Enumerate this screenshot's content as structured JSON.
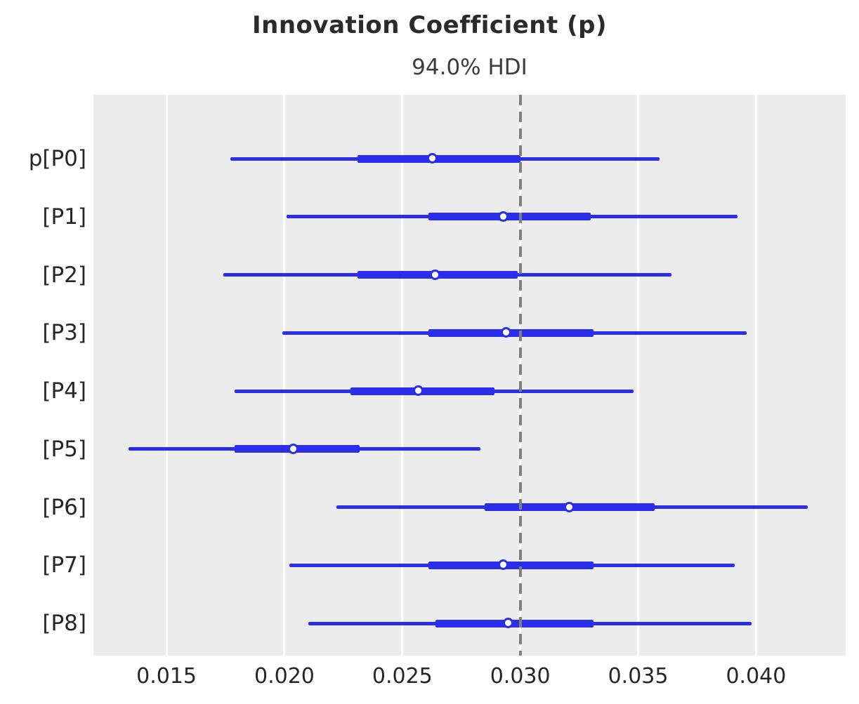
{
  "title": "Innovation Coefficient (p)",
  "subtitle": "94.0% HDI",
  "chart_data": {
    "type": "forest",
    "title": "Innovation Coefficient (p)",
    "subtitle": "94.0% HDI",
    "hdi_probability": "94.0%",
    "variable": "p",
    "xlim": [
      0.0119,
      0.0438
    ],
    "x_ticks": [
      0.015,
      0.02,
      0.025,
      0.03,
      0.035,
      0.04
    ],
    "x_tick_labels": [
      "0.015",
      "0.020",
      "0.025",
      "0.030",
      "0.035",
      "0.040"
    ],
    "ref_line_value": 0.03,
    "grid": "vertical-only",
    "legend": "none",
    "rows": [
      {
        "label": "p[P0]",
        "hdi_low": 0.0177,
        "quartile_low": 0.0231,
        "median": 0.0263,
        "quartile_high": 0.03,
        "hdi_high": 0.0359
      },
      {
        "label": "[P1]",
        "hdi_low": 0.0201,
        "quartile_low": 0.0261,
        "median": 0.0293,
        "quartile_high": 0.033,
        "hdi_high": 0.0392
      },
      {
        "label": "[P2]",
        "hdi_low": 0.0174,
        "quartile_low": 0.0231,
        "median": 0.0264,
        "quartile_high": 0.0299,
        "hdi_high": 0.0364
      },
      {
        "label": "[P3]",
        "hdi_low": 0.0199,
        "quartile_low": 0.0261,
        "median": 0.0294,
        "quartile_high": 0.0331,
        "hdi_high": 0.0396
      },
      {
        "label": "[P4]",
        "hdi_low": 0.0179,
        "quartile_low": 0.0228,
        "median": 0.0257,
        "quartile_high": 0.0289,
        "hdi_high": 0.0348
      },
      {
        "label": "[P5]",
        "hdi_low": 0.0134,
        "quartile_low": 0.0179,
        "median": 0.0204,
        "quartile_high": 0.0232,
        "hdi_high": 0.0283
      },
      {
        "label": "[P6]",
        "hdi_low": 0.0222,
        "quartile_low": 0.0285,
        "median": 0.0321,
        "quartile_high": 0.0357,
        "hdi_high": 0.0422
      },
      {
        "label": "[P7]",
        "hdi_low": 0.0202,
        "quartile_low": 0.0261,
        "median": 0.0293,
        "quartile_high": 0.0331,
        "hdi_high": 0.0391
      },
      {
        "label": "[P8]",
        "hdi_low": 0.021,
        "quartile_low": 0.0264,
        "median": 0.0295,
        "quartile_high": 0.0331,
        "hdi_high": 0.0398
      }
    ],
    "colors": {
      "interval": "#2a2eec",
      "ref_line": "#7f7f7f",
      "plot_background": "#ececec",
      "gridline": "#ffffff",
      "text": "#262626"
    }
  }
}
